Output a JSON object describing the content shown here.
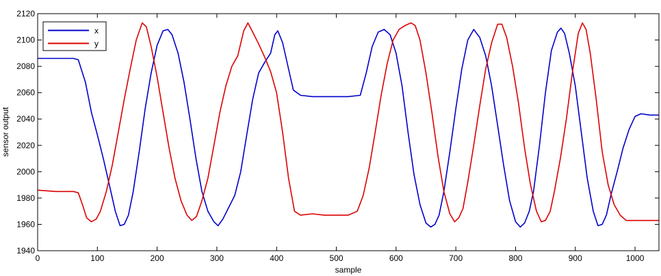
{
  "chart_data": {
    "type": "line",
    "title": "",
    "xlabel": "sample",
    "ylabel": "sensor output",
    "xlim": [
      0,
      1040
    ],
    "ylim": [
      1940,
      2120
    ],
    "xticks": [
      0,
      100,
      200,
      300,
      400,
      500,
      600,
      700,
      800,
      900,
      1000
    ],
    "yticks": [
      1940,
      1960,
      1980,
      2000,
      2020,
      2040,
      2060,
      2080,
      2100,
      2120
    ],
    "grid": false,
    "legend_position": "top-left",
    "series": [
      {
        "name": "x",
        "color": "#0000cc",
        "points": [
          [
            0,
            2086
          ],
          [
            30,
            2086
          ],
          [
            60,
            2086
          ],
          [
            68,
            2085
          ],
          [
            80,
            2068
          ],
          [
            90,
            2045
          ],
          [
            100,
            2028
          ],
          [
            110,
            2010
          ],
          [
            120,
            1990
          ],
          [
            130,
            1970
          ],
          [
            138,
            1959
          ],
          [
            145,
            1960
          ],
          [
            152,
            1967
          ],
          [
            160,
            1985
          ],
          [
            170,
            2015
          ],
          [
            180,
            2048
          ],
          [
            190,
            2075
          ],
          [
            200,
            2096
          ],
          [
            210,
            2107
          ],
          [
            218,
            2108
          ],
          [
            225,
            2104
          ],
          [
            235,
            2090
          ],
          [
            245,
            2068
          ],
          [
            255,
            2040
          ],
          [
            265,
            2010
          ],
          [
            275,
            1985
          ],
          [
            285,
            1970
          ],
          [
            295,
            1962
          ],
          [
            302,
            1959
          ],
          [
            310,
            1964
          ],
          [
            320,
            1973
          ],
          [
            330,
            1982
          ],
          [
            340,
            2000
          ],
          [
            350,
            2028
          ],
          [
            360,
            2055
          ],
          [
            370,
            2075
          ],
          [
            380,
            2083
          ],
          [
            390,
            2090
          ],
          [
            397,
            2104
          ],
          [
            402,
            2107
          ],
          [
            410,
            2098
          ],
          [
            420,
            2078
          ],
          [
            428,
            2062
          ],
          [
            440,
            2058
          ],
          [
            460,
            2057
          ],
          [
            480,
            2057
          ],
          [
            500,
            2057
          ],
          [
            520,
            2057
          ],
          [
            540,
            2058
          ],
          [
            550,
            2075
          ],
          [
            560,
            2095
          ],
          [
            570,
            2106
          ],
          [
            580,
            2108
          ],
          [
            590,
            2104
          ],
          [
            600,
            2090
          ],
          [
            610,
            2065
          ],
          [
            620,
            2030
          ],
          [
            630,
            1998
          ],
          [
            640,
            1975
          ],
          [
            650,
            1961
          ],
          [
            658,
            1958
          ],
          [
            665,
            1960
          ],
          [
            672,
            1967
          ],
          [
            680,
            1985
          ],
          [
            690,
            2015
          ],
          [
            700,
            2048
          ],
          [
            710,
            2078
          ],
          [
            720,
            2100
          ],
          [
            730,
            2108
          ],
          [
            740,
            2102
          ],
          [
            750,
            2088
          ],
          [
            760,
            2065
          ],
          [
            770,
            2035
          ],
          [
            780,
            2005
          ],
          [
            790,
            1978
          ],
          [
            800,
            1962
          ],
          [
            808,
            1958
          ],
          [
            815,
            1961
          ],
          [
            823,
            1970
          ],
          [
            830,
            1985
          ],
          [
            840,
            2020
          ],
          [
            850,
            2060
          ],
          [
            860,
            2092
          ],
          [
            870,
            2106
          ],
          [
            876,
            2109
          ],
          [
            882,
            2105
          ],
          [
            890,
            2090
          ],
          [
            900,
            2065
          ],
          [
            910,
            2030
          ],
          [
            920,
            1995
          ],
          [
            930,
            1970
          ],
          [
            938,
            1959
          ],
          [
            945,
            1960
          ],
          [
            952,
            1967
          ],
          [
            960,
            1983
          ],
          [
            970,
            2000
          ],
          [
            980,
            2018
          ],
          [
            990,
            2032
          ],
          [
            1000,
            2042
          ],
          [
            1010,
            2044
          ],
          [
            1025,
            2043
          ],
          [
            1040,
            2043
          ]
        ]
      },
      {
        "name": "y",
        "color": "#dd0000",
        "points": [
          [
            0,
            1986
          ],
          [
            30,
            1985
          ],
          [
            60,
            1985
          ],
          [
            68,
            1984
          ],
          [
            75,
            1975
          ],
          [
            82,
            1965
          ],
          [
            90,
            1962
          ],
          [
            98,
            1964
          ],
          [
            105,
            1970
          ],
          [
            115,
            1985
          ],
          [
            125,
            2005
          ],
          [
            135,
            2030
          ],
          [
            145,
            2055
          ],
          [
            155,
            2078
          ],
          [
            165,
            2100
          ],
          [
            175,
            2113
          ],
          [
            182,
            2110
          ],
          [
            190,
            2095
          ],
          [
            200,
            2072
          ],
          [
            210,
            2045
          ],
          [
            220,
            2018
          ],
          [
            230,
            1995
          ],
          [
            240,
            1978
          ],
          [
            250,
            1967
          ],
          [
            258,
            1963
          ],
          [
            266,
            1966
          ],
          [
            275,
            1978
          ],
          [
            285,
            1995
          ],
          [
            295,
            2020
          ],
          [
            305,
            2045
          ],
          [
            315,
            2065
          ],
          [
            325,
            2080
          ],
          [
            335,
            2088
          ],
          [
            345,
            2107
          ],
          [
            352,
            2113
          ],
          [
            360,
            2106
          ],
          [
            370,
            2097
          ],
          [
            380,
            2087
          ],
          [
            390,
            2076
          ],
          [
            400,
            2060
          ],
          [
            410,
            2030
          ],
          [
            420,
            1995
          ],
          [
            430,
            1970
          ],
          [
            440,
            1967
          ],
          [
            460,
            1968
          ],
          [
            480,
            1967
          ],
          [
            500,
            1967
          ],
          [
            520,
            1967
          ],
          [
            535,
            1970
          ],
          [
            545,
            1982
          ],
          [
            555,
            2003
          ],
          [
            565,
            2030
          ],
          [
            575,
            2058
          ],
          [
            585,
            2082
          ],
          [
            595,
            2100
          ],
          [
            605,
            2108
          ],
          [
            615,
            2111
          ],
          [
            625,
            2113
          ],
          [
            632,
            2111
          ],
          [
            640,
            2100
          ],
          [
            650,
            2075
          ],
          [
            660,
            2045
          ],
          [
            670,
            2012
          ],
          [
            680,
            1985
          ],
          [
            690,
            1968
          ],
          [
            698,
            1962
          ],
          [
            705,
            1965
          ],
          [
            712,
            1972
          ],
          [
            720,
            1992
          ],
          [
            730,
            2020
          ],
          [
            740,
            2050
          ],
          [
            750,
            2078
          ],
          [
            760,
            2098
          ],
          [
            770,
            2112
          ],
          [
            777,
            2112
          ],
          [
            785,
            2102
          ],
          [
            795,
            2080
          ],
          [
            805,
            2052
          ],
          [
            815,
            2018
          ],
          [
            825,
            1990
          ],
          [
            835,
            1970
          ],
          [
            843,
            1962
          ],
          [
            850,
            1963
          ],
          [
            858,
            1970
          ],
          [
            865,
            1985
          ],
          [
            875,
            2010
          ],
          [
            885,
            2040
          ],
          [
            895,
            2075
          ],
          [
            905,
            2105
          ],
          [
            912,
            2113
          ],
          [
            918,
            2108
          ],
          [
            925,
            2090
          ],
          [
            935,
            2055
          ],
          [
            945,
            2015
          ],
          [
            955,
            1990
          ],
          [
            965,
            1975
          ],
          [
            975,
            1967
          ],
          [
            985,
            1963
          ],
          [
            1000,
            1963
          ],
          [
            1020,
            1963
          ],
          [
            1040,
            1963
          ]
        ]
      }
    ]
  }
}
